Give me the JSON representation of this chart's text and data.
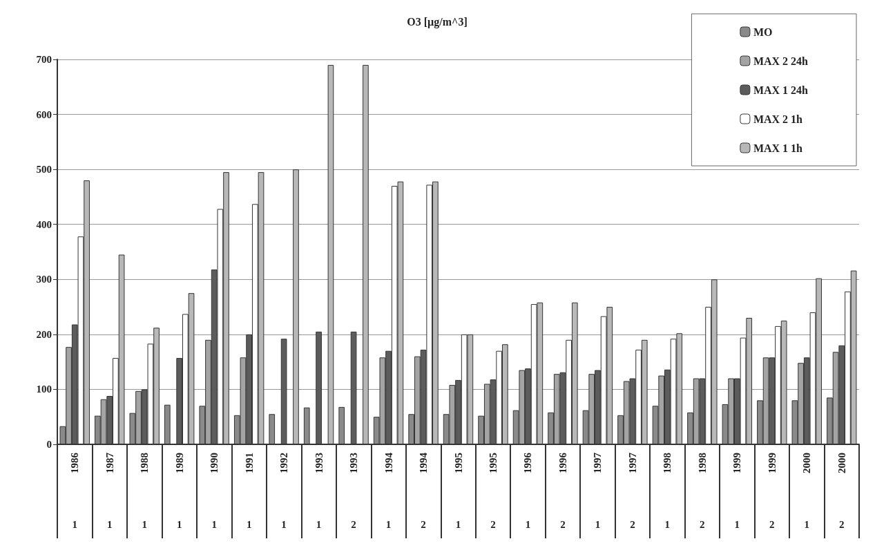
{
  "chart_data": {
    "type": "bar",
    "title": "O3 [µg/m^3]",
    "categories": [
      "1986\n1",
      "1987\n1",
      "1988\n1",
      "1989\n1",
      "1990\n1",
      "1991\n1",
      "1992\n1",
      "1993\n1",
      "1993\n2",
      "1994\n1",
      "1994\n2",
      "1995\n1",
      "1995\n2",
      "1996\n1",
      "1996\n2",
      "1997\n1",
      "1997\n2",
      "1998\n1",
      "1998\n2",
      "1999\n1",
      "1999\n2",
      "2000\n1",
      "2000\n2"
    ],
    "series": [
      {
        "name": "MO",
        "color": "#8a8a8a",
        "values": [
          33,
          52,
          57,
          72,
          70,
          53,
          55,
          67,
          68,
          50,
          55,
          55,
          52,
          62,
          58,
          62,
          53,
          70,
          58,
          73,
          80,
          80,
          85
        ]
      },
      {
        "name": "MAX 2 24h",
        "color": "#a4a4a4",
        "values": [
          177,
          82,
          97,
          null,
          190,
          158,
          null,
          null,
          null,
          158,
          160,
          108,
          110,
          135,
          128,
          128,
          115,
          125,
          120,
          120,
          158,
          148,
          168
        ]
      },
      {
        "name": "MAX 1 24h",
        "color": "#5c5c5c",
        "values": [
          218,
          88,
          100,
          157,
          318,
          200,
          192,
          205,
          205,
          170,
          172,
          117,
          118,
          138,
          131,
          135,
          120,
          136,
          120,
          120,
          158,
          158,
          180
        ]
      },
      {
        "name": "MAX 2 1h",
        "color": "#ffffff",
        "values": [
          378,
          157,
          183,
          237,
          428,
          437,
          null,
          null,
          null,
          470,
          472,
          200,
          170,
          255,
          190,
          233,
          172,
          192,
          250,
          194,
          215,
          240,
          278
        ]
      },
      {
        "name": "MAX 1 1h",
        "color": "#b8b8b8",
        "values": [
          480,
          345,
          212,
          275,
          495,
          495,
          500,
          690,
          690,
          478,
          478,
          200,
          182,
          258,
          258,
          250,
          190,
          202,
          300,
          230,
          225,
          302,
          316
        ]
      }
    ],
    "ylim": [
      0,
      700
    ],
    "yticks": [
      0,
      100,
      200,
      300,
      400,
      500,
      600,
      700
    ],
    "grid": "y",
    "legend": "top right"
  }
}
